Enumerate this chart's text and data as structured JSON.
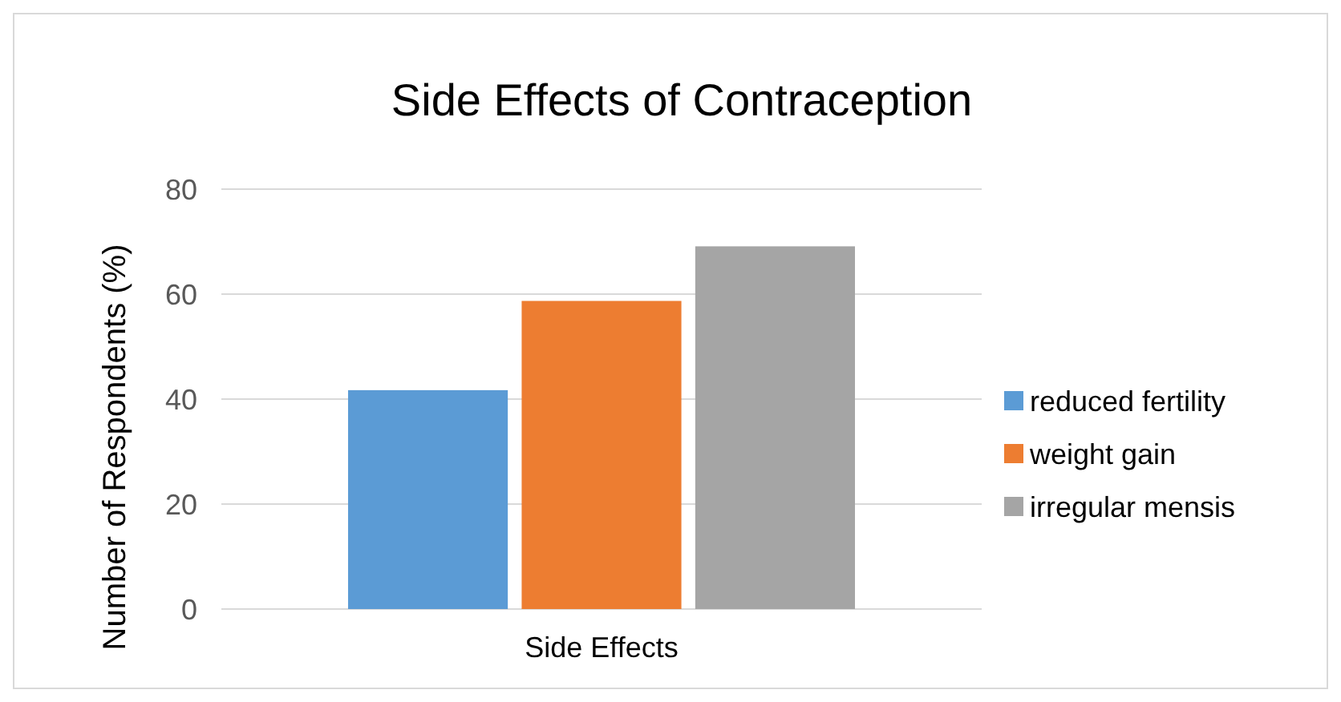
{
  "chart_data": {
    "type": "bar",
    "title": "Side Effects of Contraception",
    "ylabel": "Number of Respondents (%)",
    "categories": [
      "Side Effects"
    ],
    "series": [
      {
        "name": "reduced fertility",
        "color": "#5b9bd5",
        "values": [
          41.7
        ]
      },
      {
        "name": "weight gain",
        "color": "#ed7d31",
        "values": [
          58.7
        ]
      },
      {
        "name": "irregular mensis",
        "color": "#a5a5a5",
        "values": [
          69.1
        ]
      }
    ],
    "ylim": [
      0,
      80
    ],
    "yticks": [
      0,
      20,
      40,
      60,
      80
    ],
    "grid": "y",
    "legend": "right"
  }
}
